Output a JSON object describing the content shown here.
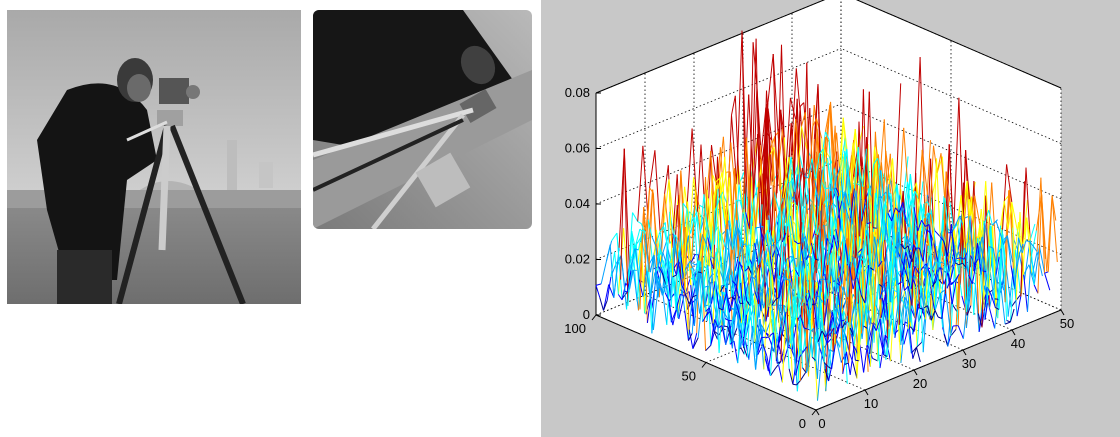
{
  "images": [
    {
      "subject": "cameraman photograph, grayscale"
    },
    {
      "subject": "cameraman photograph, rotated, grayscale"
    }
  ],
  "chart_data": {
    "type": "mesh3d",
    "title": "",
    "xlabel": "",
    "ylabel": "",
    "zlabel": "",
    "x_ticks": [
      "0",
      "10",
      "20",
      "30",
      "40",
      "50"
    ],
    "y_ticks": [
      "0",
      "50",
      "100"
    ],
    "z_ticks": [
      "0",
      "0.02",
      "0.04",
      "0.06",
      "0.08"
    ],
    "xlim": [
      0,
      50
    ],
    "ylim": [
      0,
      100
    ],
    "zlim": [
      0,
      0.08
    ],
    "grid": true,
    "colormap": [
      "#00008f",
      "#0000ff",
      "#00a0ff",
      "#00ffff",
      "#ffff00",
      "#ff8000",
      "#c00000"
    ],
    "background": "#c8c8c8",
    "notes_visible_peak": 0.081
  }
}
